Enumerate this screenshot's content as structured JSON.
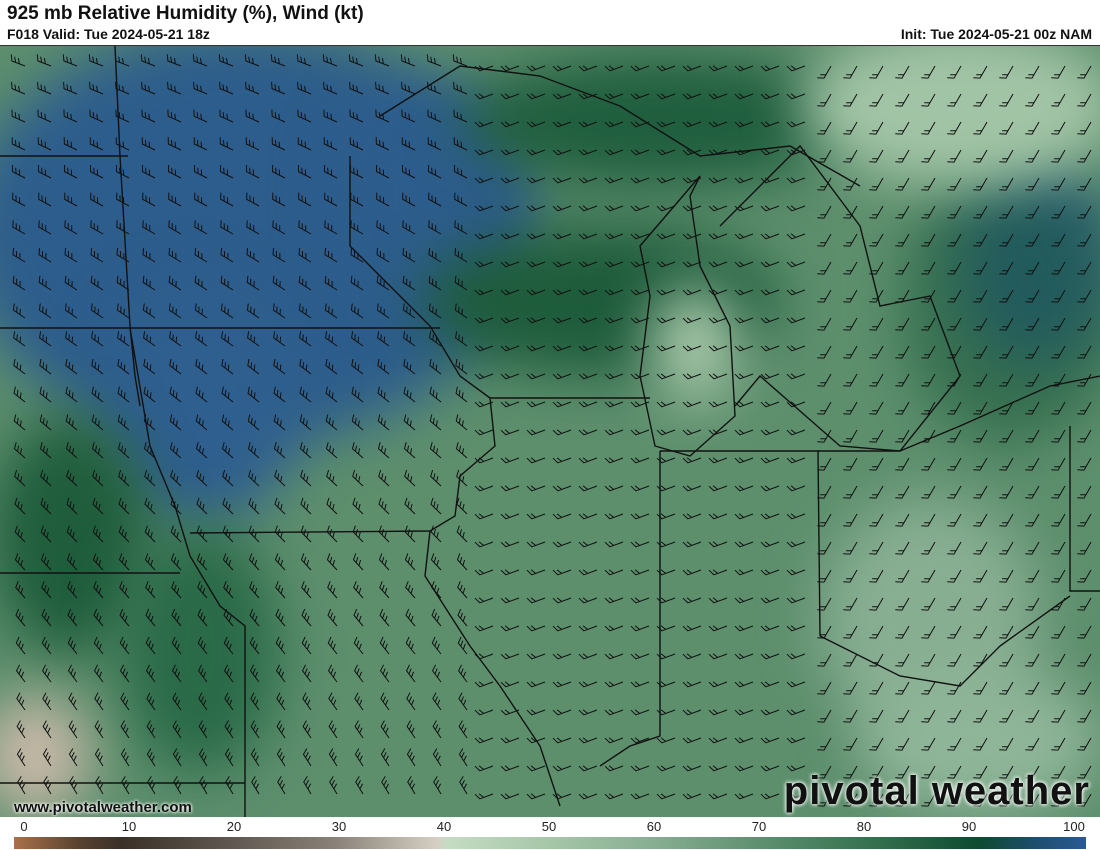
{
  "header": {
    "title": "925 mb Relative Humidity (%), Wind (kt)",
    "valid": "F018 Valid: Tue 2024-05-21 18z",
    "init": "Init: Tue 2024-05-21 00z NAM"
  },
  "map": {
    "website": "www.pivotalweather.com",
    "logo": "pivotal weather"
  },
  "colorbar": {
    "units": "%",
    "ticks": [
      "0",
      "10",
      "20",
      "30",
      "40",
      "50",
      "60",
      "70",
      "80",
      "90",
      "100"
    ],
    "colors": {
      "0": "#a9714a",
      "10": "#3a3028",
      "40": "#d6d0c4",
      "50": "#a6c6a8",
      "70": "#5c8f6e",
      "90": "#0e4a30",
      "100": "#2a5a92"
    }
  }
}
